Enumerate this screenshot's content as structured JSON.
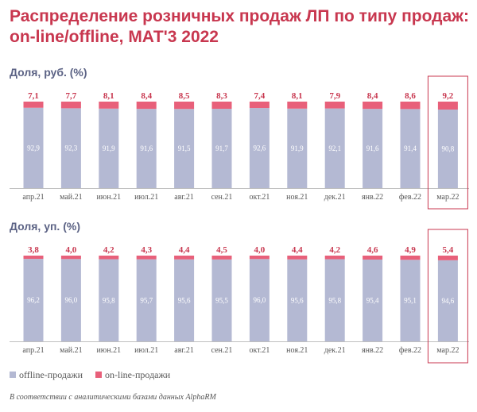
{
  "title": "Распределение розничных продаж ЛП по типу продаж: on-line/offline, МАТ'3 2022",
  "footnote": "В соответствии с аналитическими базами данных AlphaRM",
  "colors": {
    "offline": "#b4b9d3",
    "online": "#e8607a",
    "highlight": "#c8374f",
    "title": "#c8374f",
    "subtitle": "#5c6385"
  },
  "legend": {
    "offline": "offline-продажи",
    "online": "on-line-продажи"
  },
  "chart_data": [
    {
      "type": "bar",
      "stacked": true,
      "subtitle": "Доля, руб. (%)",
      "categories": [
        "апр.21",
        "май.21",
        "июн.21",
        "июл.21",
        "авг.21",
        "сен.21",
        "окт.21",
        "ноя.21",
        "дек.21",
        "янв.22",
        "фев.22",
        "мар.22"
      ],
      "series": [
        {
          "name": "offline-продажи",
          "values": [
            "92,9",
            "92,3",
            "91,9",
            "91,6",
            "91,5",
            "91,7",
            "92,6",
            "91,9",
            "92,1",
            "91,6",
            "91,4",
            "90,8"
          ]
        },
        {
          "name": "on-line-продажи",
          "values": [
            "7,1",
            "7,7",
            "8,1",
            "8,4",
            "8,5",
            "8,3",
            "7,4",
            "8,1",
            "7,9",
            "8,4",
            "8,6",
            "9,2"
          ]
        }
      ],
      "highlight_category": "мар.22",
      "ylim": [
        0,
        100
      ]
    },
    {
      "type": "bar",
      "stacked": true,
      "subtitle": "Доля, уп. (%)",
      "categories": [
        "апр.21",
        "май.21",
        "июн.21",
        "июл.21",
        "авг.21",
        "сен.21",
        "окт.21",
        "ноя.21",
        "дек.21",
        "янв.22",
        "фев.22",
        "мар.22"
      ],
      "series": [
        {
          "name": "offline-продажи",
          "values": [
            "96,2",
            "96,0",
            "95,8",
            "95,7",
            "95,6",
            "95,5",
            "96,0",
            "95,6",
            "95,8",
            "95,4",
            "95,1",
            "94,6"
          ]
        },
        {
          "name": "on-line-продажи",
          "values": [
            "3,8",
            "4,0",
            "4,2",
            "4,3",
            "4,4",
            "4,5",
            "4,0",
            "4,4",
            "4,2",
            "4,6",
            "4,9",
            "5,4"
          ]
        }
      ],
      "highlight_category": "мар.22",
      "ylim": [
        0,
        100
      ]
    }
  ]
}
